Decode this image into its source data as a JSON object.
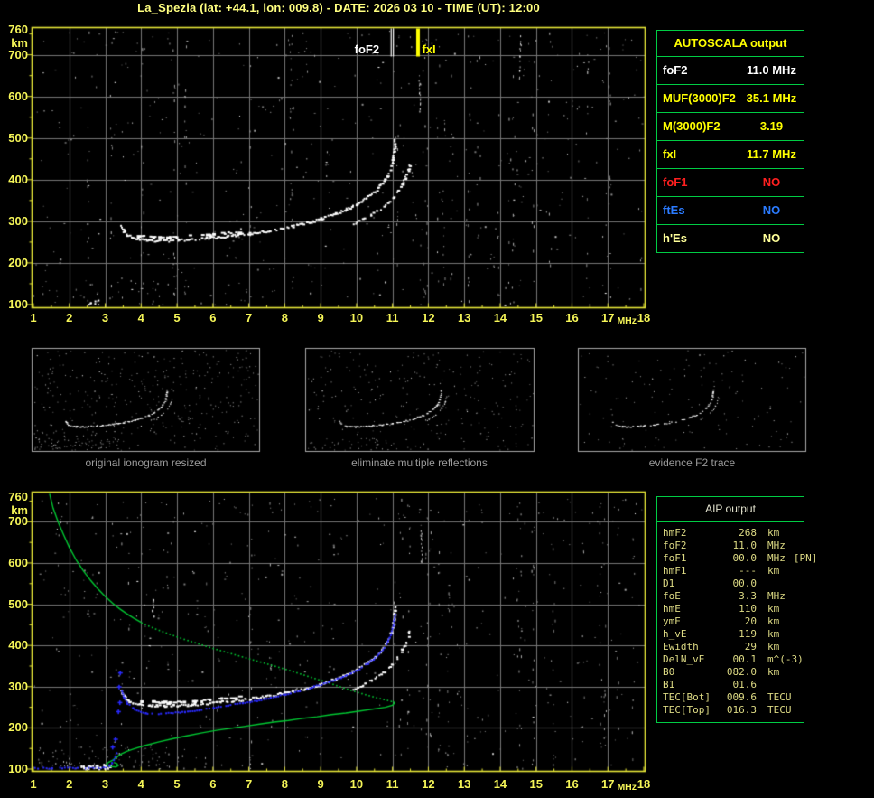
{
  "title": "La_Spezia (lat: +44.1, lon: 009.8) - DATE: 2026 03 10 - TIME (UT): 12:00",
  "colors": {
    "frame": "#e8e838",
    "axis_text": "#f5f558",
    "grid": "#777777",
    "title": "#ffff80",
    "table_border": "#00cc44",
    "trace_white": "#ffffff",
    "profile_green": "#00c832",
    "restored_blue": "#2a2aff",
    "caption_gray": "#9a9a9a",
    "marker_fof2": "#ffffff",
    "marker_fxi": "#ffff00"
  },
  "axes": {
    "x_ticks": [
      "1",
      "2",
      "3",
      "4",
      "5",
      "6",
      "7",
      "8",
      "9",
      "10",
      "11",
      "12",
      "13",
      "14",
      "15",
      "16",
      "17",
      "18"
    ],
    "x_unit": "MHz",
    "y_ticks": [
      "760",
      "700",
      "600",
      "500",
      "400",
      "300",
      "200",
      "100"
    ],
    "y_tick_values": [
      760,
      700,
      600,
      500,
      400,
      300,
      200,
      100
    ],
    "y_unit": "km"
  },
  "markers": {
    "foF2": {
      "label": "foF2",
      "freq_mhz": 11.0
    },
    "fxI": {
      "label": "fxI",
      "freq_mhz": 11.7
    }
  },
  "thumbnails": [
    {
      "caption": "original ionogram resized"
    },
    {
      "caption": "eliminate multiple reflections"
    },
    {
      "caption": "evidence F2 trace"
    }
  ],
  "autoscala": {
    "header": "AUTOSCALA output",
    "rows": [
      {
        "label": "foF2",
        "value": "11.0 MHz",
        "color": "#ffffff"
      },
      {
        "label": "MUF(3000)F2",
        "value": "35.1 MHz",
        "color": "#ffff00"
      },
      {
        "label": "M(3000)F2",
        "value": "3.19",
        "color": "#ffff00"
      },
      {
        "label": "fxI",
        "value": "11.7 MHz",
        "color": "#ffff00"
      },
      {
        "label": "foF1",
        "value": "NO",
        "color": "#ff2020"
      },
      {
        "label": "ftEs",
        "value": "NO",
        "color": "#2b7bff"
      },
      {
        "label": "h'Es",
        "value": "NO",
        "color": "#ffff99"
      }
    ]
  },
  "aip": {
    "header": "AIP output",
    "rows": [
      {
        "label": "hmF2",
        "value": "268",
        "unit": "km",
        "note": ""
      },
      {
        "label": "foF2",
        "value": "11.0",
        "unit": "MHz",
        "note": ""
      },
      {
        "label": "foF1",
        "value": "00.0",
        "unit": "MHz",
        "note": "[PN]"
      },
      {
        "label": "hmF1",
        "value": "---",
        "unit": "km",
        "note": ""
      },
      {
        "label": "D1",
        "value": "00.0",
        "unit": "",
        "note": ""
      },
      {
        "label": "foE",
        "value": "3.3",
        "unit": "MHz",
        "note": ""
      },
      {
        "label": "hmE",
        "value": "110",
        "unit": "km",
        "note": ""
      },
      {
        "label": "ymE",
        "value": "20",
        "unit": "km",
        "note": ""
      },
      {
        "label": "h_vE",
        "value": "119",
        "unit": "km",
        "note": ""
      },
      {
        "label": "Ewidth",
        "value": "29",
        "unit": "km",
        "note": ""
      },
      {
        "label": "DelN_vE",
        "value": "00.1",
        "unit": "m^(-3)",
        "note": ""
      },
      {
        "label": "B0",
        "value": "082.0",
        "unit": "km",
        "note": ""
      },
      {
        "label": "B1",
        "value": "01.6",
        "unit": "",
        "note": ""
      },
      {
        "label": "TEC[Bot]",
        "value": "009.6",
        "unit": "TECU",
        "note": ""
      },
      {
        "label": "TEC[Top]",
        "value": "016.3",
        "unit": "TECU",
        "note": ""
      }
    ]
  },
  "chart_data": [
    {
      "id": "main_ionogram",
      "type": "scatter",
      "title": "",
      "xlabel": "MHz",
      "ylabel": "km",
      "xlim": [
        1,
        18
      ],
      "ylim": [
        100,
        760
      ],
      "grid": true,
      "annotations": [
        {
          "label": "foF2",
          "freq_mhz": 11.0,
          "color": "#ffffff"
        },
        {
          "label": "fxI",
          "freq_mhz": 11.7,
          "color": "#ffff00"
        }
      ],
      "series": [
        {
          "name": "F2 ordinary trace",
          "color": "#ffffff",
          "points": [
            [
              3.42,
              292
            ],
            [
              3.5,
              278
            ],
            [
              3.6,
              268
            ],
            [
              3.75,
              261
            ],
            [
              3.95,
              258
            ],
            [
              4.2,
              256
            ],
            [
              4.6,
              255
            ],
            [
              5.0,
              256
            ],
            [
              5.4,
              258
            ],
            [
              5.8,
              261
            ],
            [
              6.2,
              264
            ],
            [
              6.6,
              268
            ],
            [
              7.0,
              272
            ],
            [
              7.4,
              277
            ],
            [
              7.8,
              283
            ],
            [
              8.2,
              290
            ],
            [
              8.6,
              298
            ],
            [
              9.0,
              308
            ],
            [
              9.4,
              320
            ],
            [
              9.7,
              331
            ],
            [
              10.0,
              344
            ],
            [
              10.25,
              358
            ],
            [
              10.5,
              374
            ],
            [
              10.7,
              392
            ],
            [
              10.85,
              412
            ],
            [
              10.95,
              434
            ],
            [
              11.0,
              456
            ],
            [
              11.03,
              476
            ],
            [
              11.05,
              496
            ]
          ]
        },
        {
          "name": "F2 extraordinary trace",
          "color": "#ffffff",
          "points": [
            [
              9.9,
              296
            ],
            [
              10.15,
              306
            ],
            [
              10.4,
              318
            ],
            [
              10.65,
              332
            ],
            [
              10.9,
              350
            ],
            [
              11.1,
              370
            ],
            [
              11.25,
              390
            ],
            [
              11.35,
              408
            ],
            [
              11.42,
              424
            ],
            [
              11.46,
              438
            ]
          ]
        },
        {
          "name": "upper echo of flat trace",
          "color": "#ffffff",
          "points": [
            [
              3.9,
              267
            ],
            [
              4.3,
              265
            ],
            [
              4.7,
              264
            ],
            [
              5.1,
              265
            ],
            [
              5.5,
              267
            ],
            [
              5.9,
              270
            ],
            [
              6.3,
              273
            ],
            [
              6.7,
              277
            ]
          ]
        }
      ]
    },
    {
      "id": "aip_ionogram",
      "type": "scatter",
      "title": "",
      "xlabel": "MHz",
      "ylabel": "km",
      "xlim": [
        1,
        18
      ],
      "ylim": [
        100,
        760
      ],
      "grid": true,
      "includes_series_of": "main_ionogram",
      "series": [
        {
          "name": "restored F trace",
          "color": "#2a2aff",
          "points": [
            [
              3.44,
              290
            ],
            [
              3.5,
              276
            ],
            [
              3.6,
              261
            ],
            [
              3.75,
              249
            ],
            [
              3.9,
              242
            ],
            [
              4.1,
              237
            ],
            [
              4.4,
              236
            ],
            [
              4.8,
              238
            ],
            [
              5.2,
              241
            ],
            [
              5.6,
              245
            ],
            [
              6.0,
              250
            ],
            [
              6.4,
              256
            ],
            [
              6.8,
              262
            ],
            [
              7.2,
              268
            ],
            [
              7.6,
              275
            ],
            [
              8.0,
              283
            ],
            [
              8.4,
              292
            ],
            [
              8.8,
              302
            ],
            [
              9.2,
              313
            ],
            [
              9.6,
              326
            ],
            [
              10.0,
              342
            ],
            [
              10.3,
              358
            ],
            [
              10.55,
              376
            ],
            [
              10.75,
              396
            ],
            [
              10.9,
              420
            ],
            [
              11.0,
              448
            ],
            [
              11.05,
              478
            ]
          ]
        },
        {
          "name": "restored E trace",
          "color": "#2a2aff",
          "points": [
            [
              1.02,
              104
            ],
            [
              1.5,
              104
            ],
            [
              2.0,
              105
            ],
            [
              2.5,
              105
            ],
            [
              2.8,
              106
            ],
            [
              3.0,
              106
            ],
            [
              3.1,
              110
            ],
            [
              3.17,
              116
            ],
            [
              3.22,
              123
            ],
            [
              3.26,
              131
            ],
            [
              3.3,
              140
            ]
          ]
        },
        {
          "name": "restored trace samples",
          "color": "#2a2aff",
          "points": [
            [
              3.2,
              154
            ],
            [
              3.28,
              173
            ],
            [
              3.36,
              240
            ],
            [
              3.4,
              262
            ],
            [
              3.38,
              300
            ],
            [
              3.41,
              334
            ]
          ]
        },
        {
          "name": "electron density profile topside",
          "color": "#00c832",
          "style": "solid-then-dotted",
          "points": [
            [
              1.45,
              768
            ],
            [
              1.55,
              733
            ],
            [
              1.7,
              697
            ],
            [
              1.85,
              667
            ],
            [
              2.0,
              638
            ],
            [
              2.2,
              606
            ],
            [
              2.4,
              580
            ],
            [
              2.6,
              557
            ],
            [
              2.8,
              537
            ],
            [
              3.0,
              519
            ],
            [
              3.2,
              503
            ],
            [
              3.4,
              489
            ],
            [
              3.6,
              477
            ],
            [
              3.8,
              466
            ],
            [
              4.0,
              456
            ],
            [
              4.4,
              441
            ],
            [
              4.8,
              428
            ],
            [
              5.2,
              416
            ],
            [
              5.6,
              405
            ],
            [
              6.0,
              394
            ],
            [
              6.4,
              384
            ],
            [
              6.8,
              374
            ],
            [
              7.2,
              364
            ],
            [
              7.6,
              354
            ],
            [
              8.0,
              344
            ],
            [
              8.4,
              333
            ],
            [
              8.8,
              322
            ],
            [
              9.2,
              311
            ],
            [
              9.6,
              299
            ],
            [
              10.0,
              288
            ],
            [
              10.4,
              278
            ],
            [
              10.7,
              271
            ],
            [
              10.9,
              267
            ],
            [
              11.02,
              264
            ]
          ]
        },
        {
          "name": "electron density profile bottomside",
          "color": "#00c832",
          "style": "solid",
          "points": [
            [
              11.02,
              264
            ],
            [
              11.06,
              260
            ],
            [
              11.0,
              255
            ],
            [
              10.8,
              250
            ],
            [
              10.5,
              246
            ],
            [
              10.1,
              241
            ],
            [
              9.7,
              236
            ],
            [
              9.3,
              232
            ],
            [
              8.9,
              227
            ],
            [
              8.5,
              223
            ],
            [
              8.1,
              218
            ],
            [
              7.7,
              214
            ],
            [
              7.3,
              209
            ],
            [
              6.9,
              204
            ],
            [
              6.5,
              199
            ],
            [
              6.1,
              194
            ],
            [
              5.7,
              188
            ],
            [
              5.3,
              181
            ],
            [
              4.9,
              174
            ],
            [
              4.5,
              166
            ],
            [
              4.1,
              157
            ],
            [
              3.8,
              149
            ],
            [
              3.6,
              143
            ],
            [
              3.45,
              137
            ],
            [
              3.35,
              131
            ],
            [
              3.28,
              126
            ]
          ]
        },
        {
          "name": "profile E-layer valley loop",
          "color": "#00c832",
          "style": "solid",
          "points": [
            [
              3.28,
              126
            ],
            [
              3.2,
              121
            ],
            [
              3.1,
              117
            ],
            [
              3.04,
              113
            ],
            [
              3.08,
              109
            ],
            [
              3.18,
              106
            ],
            [
              3.3,
              105
            ],
            [
              3.36,
              108
            ],
            [
              3.33,
              113
            ],
            [
              3.24,
              116
            ]
          ]
        }
      ]
    }
  ]
}
